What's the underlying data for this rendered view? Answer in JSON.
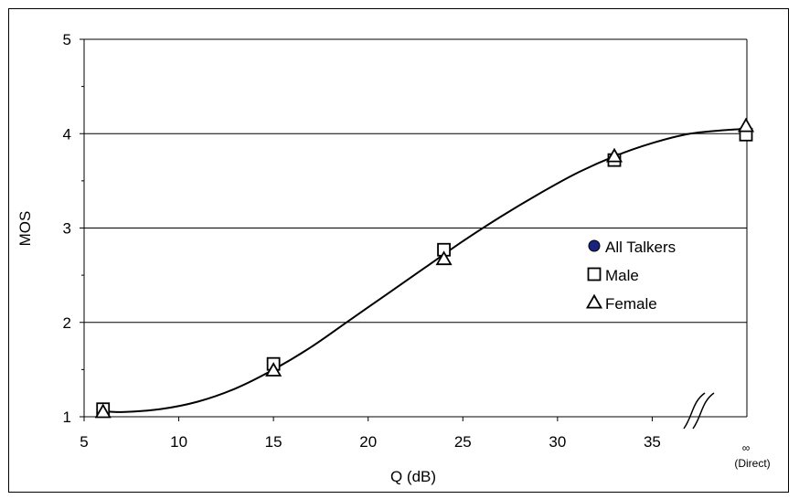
{
  "chart_data": {
    "type": "scatter",
    "xlabel": "Q (dB)",
    "ylabel": "MOS",
    "xlim": [
      5,
      40
    ],
    "ylim": [
      1,
      5
    ],
    "x_ticks": [
      "5",
      "10",
      "15",
      "20",
      "25",
      "30",
      "35"
    ],
    "y_ticks": [
      "1",
      "2",
      "3",
      "4",
      "5"
    ],
    "infinity_tick": {
      "symbol": "∞",
      "label": "(Direct)"
    },
    "grid": "horizontal",
    "legend_position": "right",
    "series": [
      {
        "name": "All Talkers",
        "marker": "circle",
        "color": "#1a237e",
        "points": []
      },
      {
        "name": "Male",
        "marker": "square",
        "color": "#000000",
        "points": [
          {
            "x": 6,
            "y": 1.08
          },
          {
            "x": 15,
            "y": 1.56
          },
          {
            "x": 24,
            "y": 2.77
          },
          {
            "x": 33,
            "y": 3.72
          },
          {
            "x": "∞",
            "y": 3.99
          }
        ]
      },
      {
        "name": "Female",
        "marker": "triangle",
        "color": "#000000",
        "points": [
          {
            "x": 6,
            "y": 1.05
          },
          {
            "x": 15,
            "y": 1.49
          },
          {
            "x": 24,
            "y": 2.67
          },
          {
            "x": 33,
            "y": 3.76
          },
          {
            "x": "∞",
            "y": 4.08
          }
        ]
      }
    ],
    "fit_curve": [
      {
        "x": 6,
        "y": 1.06
      },
      {
        "x": 7,
        "y": 1.05
      },
      {
        "x": 9,
        "y": 1.08
      },
      {
        "x": 11,
        "y": 1.16
      },
      {
        "x": 13,
        "y": 1.3
      },
      {
        "x": 15,
        "y": 1.5
      },
      {
        "x": 17,
        "y": 1.74
      },
      {
        "x": 19,
        "y": 2.02
      },
      {
        "x": 21,
        "y": 2.3
      },
      {
        "x": 23,
        "y": 2.58
      },
      {
        "x": 25,
        "y": 2.86
      },
      {
        "x": 27,
        "y": 3.12
      },
      {
        "x": 29,
        "y": 3.36
      },
      {
        "x": 31,
        "y": 3.58
      },
      {
        "x": 33,
        "y": 3.76
      },
      {
        "x": 35,
        "y": 3.9
      },
      {
        "x": 37,
        "y": 4.0
      },
      {
        "x": 39,
        "y": 4.04
      },
      {
        "x": "∞",
        "y": 4.05
      }
    ]
  }
}
